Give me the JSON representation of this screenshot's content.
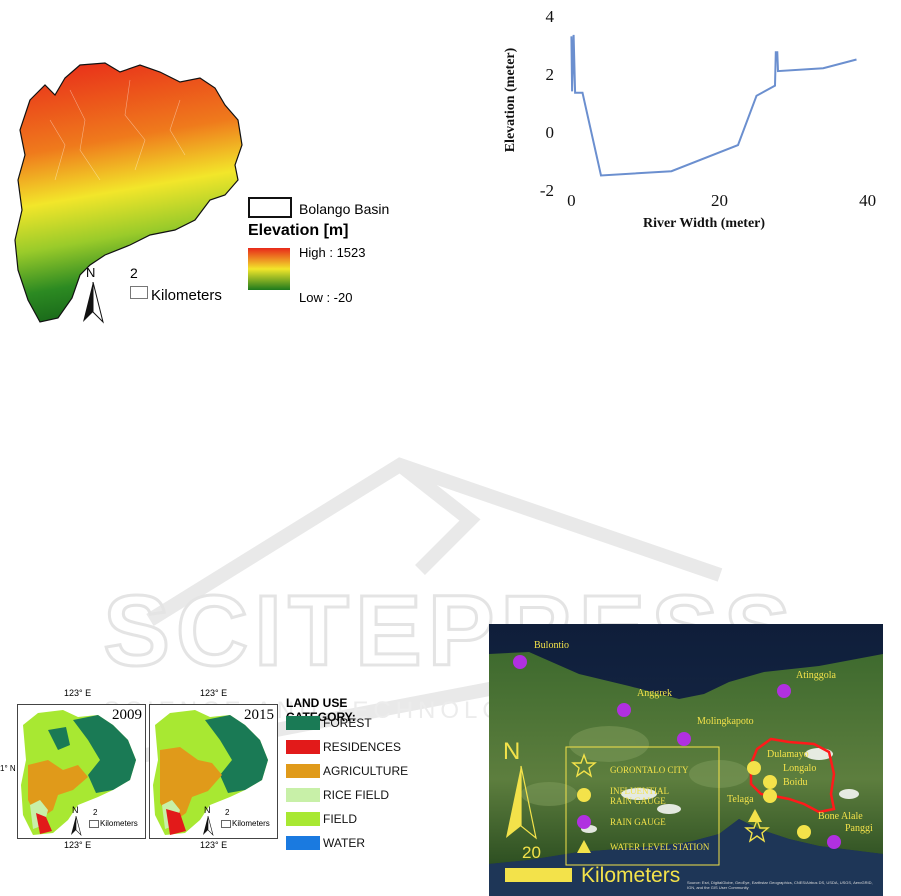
{
  "watermark": {
    "title": "SCITEPRESS",
    "subtitle": "SCIENCE AND TECHNOLOGY PUBLICATIONS"
  },
  "elevation_map": {
    "basin_label": "Bolango Basin",
    "legend_title": "Elevation [m]",
    "high_label": "High : 1523",
    "low_label": "Low : -20",
    "scale_number": "2",
    "scale_unit": "Kilometers",
    "north": "N",
    "colors": {
      "high": "#e8281a",
      "mid": "#f2e62a",
      "low": "#1d7a1d"
    }
  },
  "profile_chart": {
    "chart_data": {
      "type": "line",
      "xlabel": "River Width (meter)",
      "ylabel": "Elevation (meter)",
      "xlim": [
        -1,
        41
      ],
      "ylim": [
        -2,
        4
      ],
      "xticks": [
        "0",
        "20",
        "40"
      ],
      "yticks": [
        "-2",
        "0",
        "2",
        "4"
      ],
      "x": [
        0,
        0.1,
        0.3,
        0.5,
        1.5,
        4,
        13.5,
        22.5,
        25,
        27.5,
        27.6,
        27.8,
        27.9,
        34,
        38.5
      ],
      "y": [
        3.3,
        1.4,
        3.35,
        1.35,
        1.35,
        -1.5,
        -1.35,
        -0.45,
        1.25,
        1.6,
        2.75,
        2.75,
        2.1,
        2.2,
        2.5
      ],
      "line_color": "#6b8fcf"
    }
  },
  "land_use": {
    "year_left": "2009",
    "year_right": "2015",
    "lon_label": "123° E",
    "lat_label": "1° N",
    "scale_number": "2",
    "scale_unit": "Kilometers",
    "north": "N",
    "legend_title": "LAND USE CATEGORY:",
    "categories": [
      {
        "label": "FOREST",
        "color": "#1a7a55"
      },
      {
        "label": "RESIDENCES",
        "color": "#e21a1a"
      },
      {
        "label": "AGRICULTURE",
        "color": "#e09a1a"
      },
      {
        "label": "RICE FIELD",
        "color": "#c8f0a8"
      },
      {
        "label": "FIELD",
        "color": "#a8e832"
      },
      {
        "label": "WATER",
        "color": "#1a7ae0"
      }
    ]
  },
  "station_map": {
    "stations": [
      "Bulontio",
      "Anggrek",
      "Molingkapoto",
      "Atinggola",
      "Dulamayo",
      "Longalo",
      "Boidu",
      "Telaga",
      "Bone Alale",
      "Panggi"
    ],
    "legend": {
      "city": "GORONTALO CITY",
      "influential_line1": "INFLUENTIAL",
      "influential_line2": "RAIN GAUGE",
      "rain_gauge": "RAIN GAUGE",
      "water_level": "WATER LEVEL STATION"
    },
    "north": "N",
    "scale_number": "20",
    "scale_unit": "Kilometers",
    "attribution": "Source: Esri, DigitalGlobe, GeoEye, Earthstar Geographics, CNES/Airbus DS, USDA, USGS, AeroGRID, IGN, and the GIS User Community",
    "colors": {
      "yellow": "#f3e24a",
      "purple": "#b030e0",
      "basin": "#ff1a1a"
    }
  }
}
